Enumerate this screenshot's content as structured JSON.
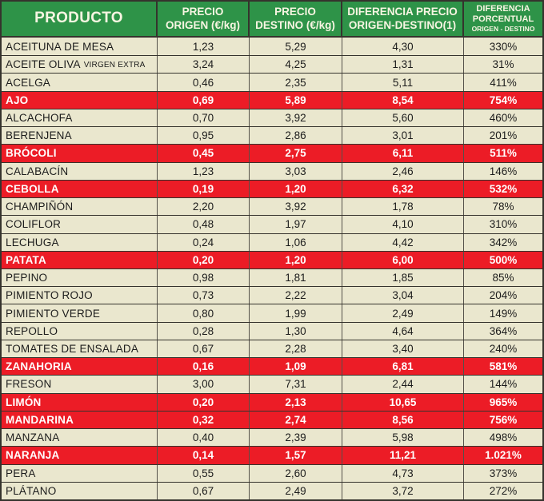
{
  "colors": {
    "header_green": "#2e9348",
    "header_text": "#f7f5e2",
    "row_cream": "#eae7ce",
    "row_text": "#1c1c1c",
    "highlight_red": "#ec1c26",
    "highlight_text": "#ffffff",
    "border_dark": "#35332d",
    "border_mid": "#55524a"
  },
  "chart_data": {
    "type": "table",
    "header": {
      "col_producto": "PRODUCTO",
      "col_origen_line1": "PRECIO",
      "col_origen_line2": "ORIGEN (€/kg)",
      "col_destino_line1": "PRECIO",
      "col_destino_line2": "DESTINO (€/kg)",
      "col_diferencia_line1": "DIFERENCIA PRECIO",
      "col_diferencia_line2": "ORIGEN-DESTINO(1)",
      "col_porcentual_line1": "DIFERENCIA",
      "col_porcentual_line2": "PORCENTUAL",
      "col_porcentual_line3": "ORIGEN - DESTINO"
    },
    "rows": [
      {
        "name": "ACEITUNA DE MESA",
        "name_small": "",
        "origen": "1,23",
        "destino": "5,29",
        "diferencia": "4,30",
        "porcentual": "330%",
        "highlight": false
      },
      {
        "name": "ACEITE OLIVA",
        "name_small": "VIRGEN EXTRA",
        "origen": "3,24",
        "destino": "4,25",
        "diferencia": "1,31",
        "porcentual": "31%",
        "highlight": false
      },
      {
        "name": "ACELGA",
        "name_small": "",
        "origen": "0,46",
        "destino": "2,35",
        "diferencia": "5,11",
        "porcentual": "411%",
        "highlight": false
      },
      {
        "name": "AJO",
        "name_small": "",
        "origen": "0,69",
        "destino": "5,89",
        "diferencia": "8,54",
        "porcentual": "754%",
        "highlight": true
      },
      {
        "name": "ALCACHOFA",
        "name_small": "",
        "origen": "0,70",
        "destino": "3,92",
        "diferencia": "5,60",
        "porcentual": "460%",
        "highlight": false
      },
      {
        "name": "BERENJENA",
        "name_small": "",
        "origen": "0,95",
        "destino": "2,86",
        "diferencia": "3,01",
        "porcentual": "201%",
        "highlight": false
      },
      {
        "name": "BRÓCOLI",
        "name_small": "",
        "origen": "0,45",
        "destino": "2,75",
        "diferencia": "6,11",
        "porcentual": "511%",
        "highlight": true
      },
      {
        "name": "CALABACÍN",
        "name_small": "",
        "origen": "1,23",
        "destino": "3,03",
        "diferencia": "2,46",
        "porcentual": "146%",
        "highlight": false
      },
      {
        "name": "CEBOLLA",
        "name_small": "",
        "origen": "0,19",
        "destino": "1,20",
        "diferencia": "6,32",
        "porcentual": "532%",
        "highlight": true
      },
      {
        "name": "CHAMPIÑÓN",
        "name_small": "",
        "origen": "2,20",
        "destino": "3,92",
        "diferencia": "1,78",
        "porcentual": "78%",
        "highlight": false
      },
      {
        "name": "COLIFLOR",
        "name_small": "",
        "origen": "0,48",
        "destino": "1,97",
        "diferencia": "4,10",
        "porcentual": "310%",
        "highlight": false
      },
      {
        "name": "LECHUGA",
        "name_small": "",
        "origen": "0,24",
        "destino": "1,06",
        "diferencia": "4,42",
        "porcentual": "342%",
        "highlight": false
      },
      {
        "name": "PATATA",
        "name_small": "",
        "origen": "0,20",
        "destino": "1,20",
        "diferencia": "6,00",
        "porcentual": "500%",
        "highlight": true
      },
      {
        "name": "PEPINO",
        "name_small": "",
        "origen": "0,98",
        "destino": "1,81",
        "diferencia": "1,85",
        "porcentual": "85%",
        "highlight": false
      },
      {
        "name": "PIMIENTO ROJO",
        "name_small": "",
        "origen": "0,73",
        "destino": "2,22",
        "diferencia": "3,04",
        "porcentual": "204%",
        "highlight": false
      },
      {
        "name": "PIMIENTO VERDE",
        "name_small": "",
        "origen": "0,80",
        "destino": "1,99",
        "diferencia": "2,49",
        "porcentual": "149%",
        "highlight": false
      },
      {
        "name": "REPOLLO",
        "name_small": "",
        "origen": "0,28",
        "destino": "1,30",
        "diferencia": "4,64",
        "porcentual": "364%",
        "highlight": false
      },
      {
        "name": "TOMATES DE ENSALADA",
        "name_small": "",
        "origen": "0,67",
        "destino": "2,28",
        "diferencia": "3,40",
        "porcentual": "240%",
        "highlight": false
      },
      {
        "name": "ZANAHORIA",
        "name_small": "",
        "origen": "0,16",
        "destino": "1,09",
        "diferencia": "6,81",
        "porcentual": "581%",
        "highlight": true
      },
      {
        "name": "FRESON",
        "name_small": "",
        "origen": "3,00",
        "destino": "7,31",
        "diferencia": "2,44",
        "porcentual": "144%",
        "highlight": false
      },
      {
        "name": "LIMÓN",
        "name_small": "",
        "origen": "0,20",
        "destino": "2,13",
        "diferencia": "10,65",
        "porcentual": "965%",
        "highlight": true
      },
      {
        "name": "MANDARINA",
        "name_small": "",
        "origen": "0,32",
        "destino": "2,74",
        "diferencia": "8,56",
        "porcentual": "756%",
        "highlight": true
      },
      {
        "name": "MANZANA",
        "name_small": "",
        "origen": "0,40",
        "destino": "2,39",
        "diferencia": "5,98",
        "porcentual": "498%",
        "highlight": false
      },
      {
        "name": "NARANJA",
        "name_small": "",
        "origen": "0,14",
        "destino": "1,57",
        "diferencia": "11,21",
        "porcentual": "1.021%",
        "highlight": true
      },
      {
        "name": "PERA",
        "name_small": "",
        "origen": "0,55",
        "destino": "2,60",
        "diferencia": "4,73",
        "porcentual": "373%",
        "highlight": false
      },
      {
        "name": "PLÁTANO",
        "name_small": "",
        "origen": "0,67",
        "destino": "2,49",
        "diferencia": "3,72",
        "porcentual": "272%",
        "highlight": false
      }
    ]
  }
}
